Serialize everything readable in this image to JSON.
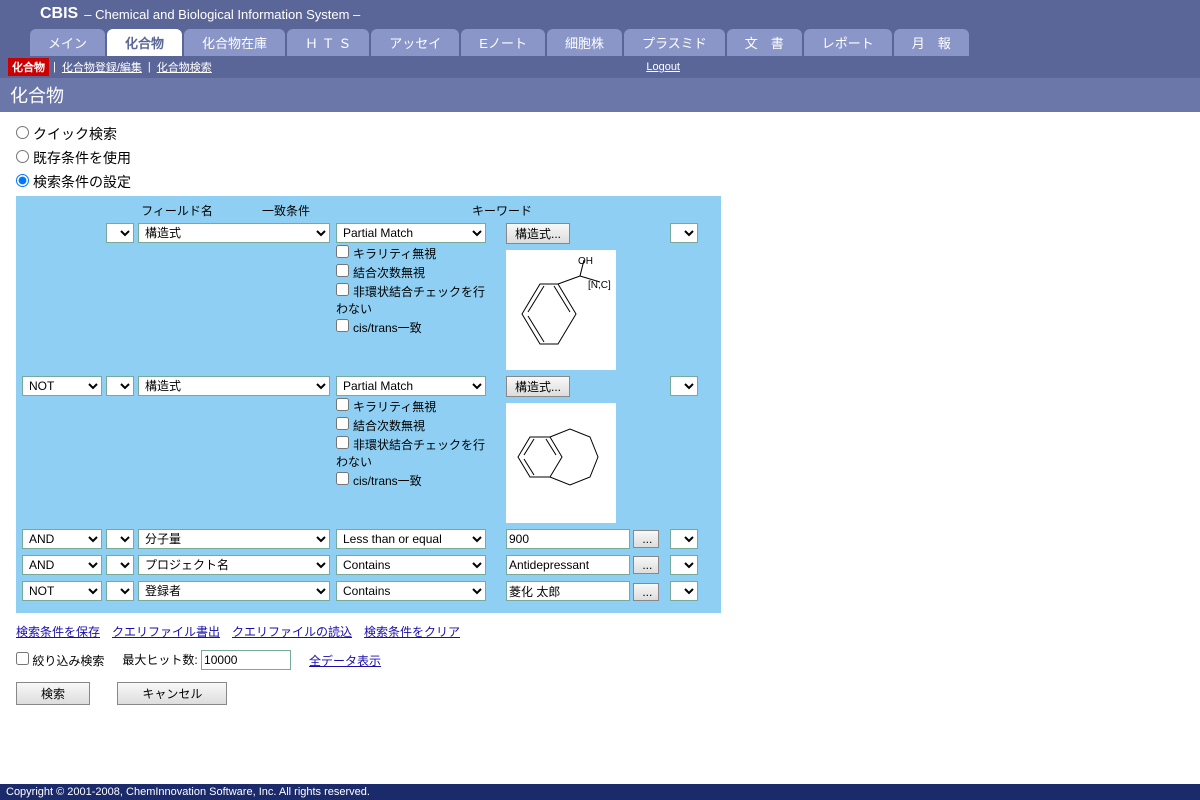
{
  "header": {
    "title": "CBIS",
    "subtitle": "– Chemical and Biological Information System –"
  },
  "tabs": [
    "メイン",
    "化合物",
    "化合物在庫",
    "Ｈ Ｔ Ｓ",
    "アッセイ",
    "Eノート",
    "細胞株",
    "プラスミド",
    "文　書",
    "レポート",
    "月　報"
  ],
  "active_tab": 1,
  "subbar": {
    "crumb": "化合物",
    "links": [
      "化合物登録/編集",
      "化合物検索"
    ],
    "logout": "Logout"
  },
  "page_title": "化合物",
  "radios": [
    {
      "label": "クイック検索",
      "checked": false
    },
    {
      "label": "既存条件を使用",
      "checked": false
    },
    {
      "label": "検索条件の設定",
      "checked": true
    }
  ],
  "col_headers": {
    "field": "フィールド名",
    "cond": "一致条件",
    "kw": "キーワード"
  },
  "check_opts": [
    "キラリティ無視",
    "結合次数無視",
    "非環状結合チェックを行わない",
    "cis/trans一致"
  ],
  "rows": [
    {
      "logic": "",
      "field": "構造式",
      "cond": "Partial Match",
      "kw_btn": "構造式...",
      "has_struct": true,
      "has_checks": true
    },
    {
      "logic": "NOT",
      "field": "構造式",
      "cond": "Partial Match",
      "kw_btn": "構造式...",
      "has_struct": true,
      "has_checks": true
    },
    {
      "logic": "AND",
      "field": "分子量",
      "cond": "Less than or equal",
      "kw_text": "900",
      "has_ell": true
    },
    {
      "logic": "AND",
      "field": "プロジェクト名",
      "cond": "Contains",
      "kw_text": "Antidepressant",
      "has_ell": true
    },
    {
      "logic": "NOT",
      "field": "登録者",
      "cond": "Contains",
      "kw_text": "菱化 太郎",
      "has_ell": true
    }
  ],
  "link_row": [
    "検索条件を保存",
    "クエリファイル書出",
    "クエリファイルの読込",
    "検索条件をクリア"
  ],
  "opts": {
    "refine": "絞り込み検索",
    "maxhit": "最大ヒット数:",
    "maxhit_val": "10000",
    "showall": "全データ表示"
  },
  "buttons": {
    "search": "検索",
    "cancel": "キャンセル"
  },
  "footer": "Copyright © 2001-2008, ChemInnovation Software, Inc. All rights reserved."
}
